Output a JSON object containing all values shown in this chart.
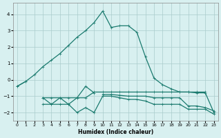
{
  "xlabel": "Humidex (Indice chaleur)",
  "x_values": [
    0,
    1,
    2,
    3,
    4,
    5,
    6,
    7,
    8,
    9,
    10,
    11,
    12,
    13,
    14,
    15,
    16,
    17,
    18,
    19,
    20,
    21,
    22,
    23
  ],
  "main_curve": [
    -0.4,
    -0.1,
    0.3,
    0.8,
    1.2,
    1.6,
    2.1,
    2.6,
    3.0,
    3.5,
    4.2,
    3.2,
    3.3,
    3.3,
    2.9,
    1.4,
    0.1,
    -0.3,
    -0.55,
    -0.75,
    -0.75,
    -0.8,
    -0.8,
    -2.0
  ],
  "curve_top_flat": [
    -0.4,
    -0.1,
    null,
    -1.1,
    -1.1,
    -1.1,
    -1.1,
    -1.1,
    -1.1,
    -0.75,
    -0.75,
    -0.75,
    -0.75,
    -0.75,
    -0.75,
    -0.75,
    -0.75,
    -0.75,
    -0.75,
    -0.75,
    -0.75,
    -0.75,
    -0.75,
    null
  ],
  "curve_zigzag": [
    null,
    null,
    null,
    -1.1,
    -1.5,
    -1.1,
    -1.5,
    -1.1,
    -0.4,
    -0.8,
    null,
    null,
    null,
    null,
    null,
    null,
    null,
    null,
    null,
    null,
    null,
    null,
    null,
    null
  ],
  "curve_bottom": [
    null,
    null,
    null,
    -1.5,
    -1.5,
    -1.5,
    -1.5,
    -2.0,
    -1.7,
    -2.0,
    -1.0,
    -1.0,
    -1.1,
    -1.2,
    -1.2,
    -1.3,
    -1.5,
    -1.5,
    -1.5,
    -1.5,
    -1.8,
    -1.8,
    -1.8,
    -2.1
  ],
  "curve_mid": [
    null,
    null,
    null,
    null,
    null,
    null,
    null,
    null,
    null,
    null,
    -0.9,
    -0.9,
    -0.95,
    -1.0,
    -1.0,
    -1.0,
    -1.1,
    -1.1,
    -1.1,
    -1.1,
    -1.6,
    -1.6,
    -1.7,
    -1.9
  ],
  "line_color": "#1a7a6e",
  "bg_color": "#d8f0f0",
  "grid_color": "#aacccc",
  "ylim": [
    -2.5,
    4.7
  ],
  "xlim": [
    -0.5,
    23.5
  ],
  "yticks": [
    -2,
    -1,
    0,
    1,
    2,
    3,
    4
  ],
  "xticks": [
    0,
    1,
    2,
    3,
    4,
    5,
    6,
    7,
    8,
    9,
    10,
    11,
    12,
    13,
    14,
    15,
    16,
    17,
    18,
    19,
    20,
    21,
    22,
    23
  ]
}
